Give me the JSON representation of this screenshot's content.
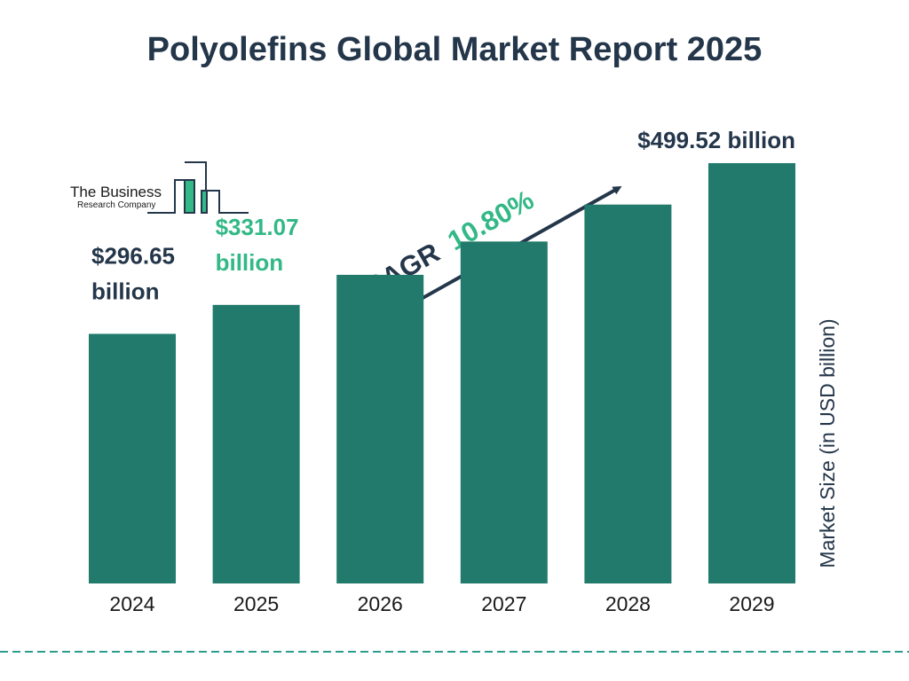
{
  "colors": {
    "bar": "#217a6b",
    "dark": "#24364a",
    "accent": "#33b887"
  },
  "logo": {
    "line1": "The Business",
    "line2": "Research Company"
  },
  "cagr": {
    "label": "CAGR",
    "value": "10.80%"
  },
  "chart_data": {
    "type": "bar",
    "title": "Polyolefins Global Market Report 2025",
    "ylabel": "Market Size (in USD billion)",
    "categories": [
      "2024",
      "2025",
      "2026",
      "2027",
      "2028",
      "2029"
    ],
    "values": [
      296.65,
      331.07,
      366.8,
      406.4,
      450.3,
      499.52
    ],
    "data_labels": [
      {
        "index": 0,
        "lines": [
          "$296.65",
          "billion"
        ],
        "style": "dark"
      },
      {
        "index": 1,
        "lines": [
          "$331.07",
          "billion"
        ],
        "style": "green"
      },
      {
        "index": 5,
        "lines": [
          "$499.52 billion"
        ],
        "style": "dark"
      }
    ],
    "grid": false,
    "legend": "none"
  }
}
